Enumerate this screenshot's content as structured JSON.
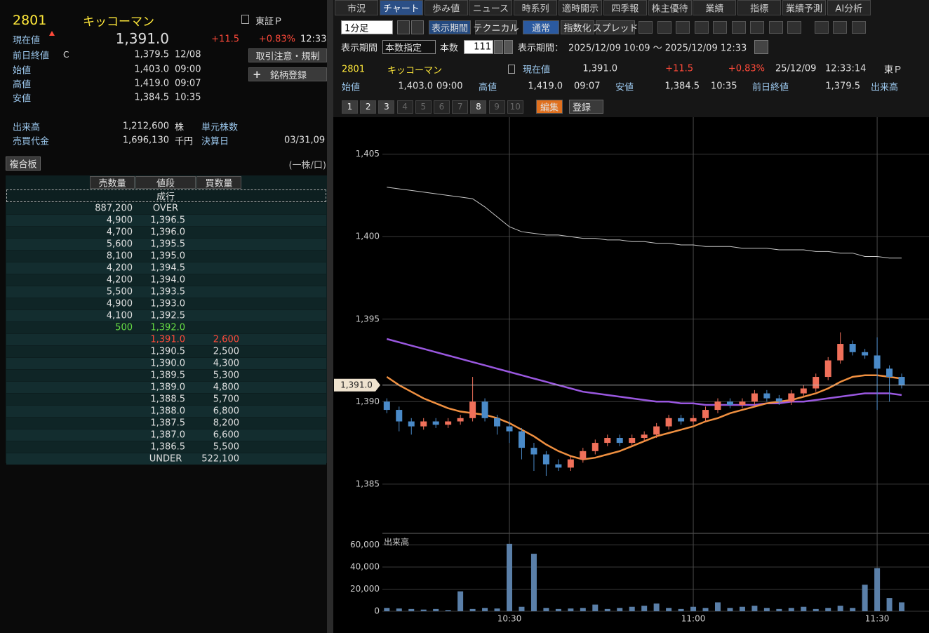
{
  "left": {
    "code": "2801",
    "name": "キッコーマン",
    "market": "東証Ｐ",
    "current_label": "現在値",
    "current": "1,391.0",
    "change": "+11.5",
    "change_pct": "+0.83%",
    "time": "12:33",
    "prev_label": "前日終値",
    "prev_flag": "C",
    "prev": "1,379.5",
    "prev_date": "12/08",
    "open_label": "始値",
    "open": "1,403.0",
    "open_time": "09:00",
    "high_label": "高値",
    "high": "1,419.0",
    "high_time": "09:07",
    "low_label": "安値",
    "low": "1,384.5",
    "low_time": "10:35",
    "btn_caution": "取引注意・規制",
    "btn_register": "銘柄登録",
    "volume_label": "出来高",
    "volume": "1,212,600",
    "volume_unit": "株",
    "unit_label": "単元株数",
    "turnover_label": "売買代金",
    "turnover": "1,696,130",
    "turnover_unit": "千円",
    "settle_label": "決算日",
    "settle": "03/31,09",
    "board_btn": "複合板",
    "board_unit": "(一株/口)"
  },
  "board": {
    "headers": [
      "売数量",
      "値段",
      "買数量"
    ],
    "market_order": "成行",
    "rows": [
      [
        "887,200",
        "OVER",
        null
      ],
      [
        "4,900",
        "1,396.5",
        null
      ],
      [
        "4,700",
        "1,396.0",
        null
      ],
      [
        "5,600",
        "1,395.5",
        null
      ],
      [
        "8,100",
        "1,395.0",
        null
      ],
      [
        "4,200",
        "1,394.5",
        null
      ],
      [
        "4,200",
        "1,394.0",
        null
      ],
      [
        "5,500",
        "1,393.5",
        null
      ],
      [
        "4,900",
        "1,393.0",
        null
      ],
      [
        "4,100",
        "1,392.5",
        null
      ],
      [
        "500",
        "1,392.0",
        null
      ],
      [
        null,
        "1,391.0",
        "2,600"
      ],
      [
        null,
        "1,390.5",
        "2,500"
      ],
      [
        null,
        "1,390.0",
        "4,300"
      ],
      [
        null,
        "1,389.5",
        "5,300"
      ],
      [
        null,
        "1,389.0",
        "4,800"
      ],
      [
        null,
        "1,388.5",
        "5,700"
      ],
      [
        null,
        "1,388.0",
        "6,800"
      ],
      [
        null,
        "1,387.5",
        "8,200"
      ],
      [
        null,
        "1,387.0",
        "6,600"
      ],
      [
        null,
        "1,386.5",
        "5,500"
      ],
      [
        null,
        "UNDER",
        "522,100"
      ]
    ]
  },
  "tabs": [
    "市況",
    "チャート",
    "歩み値",
    "ニュース",
    "時系列",
    "適時開示",
    "四季報",
    "株主優待",
    "業績",
    "指標",
    "業績予測",
    "AI分析"
  ],
  "active_tab": 1,
  "toolbar": {
    "interval": "1分足",
    "period": "表示期間",
    "technical": "テクニカル",
    "normal": "通常",
    "index": "指数化",
    "spread": "スプレッド"
  },
  "period_row": {
    "label": "表示期間",
    "mode": "本数指定",
    "count_label": "本数",
    "count": "111",
    "range_label": "表示期間：",
    "range": "2025/12/09 10:09 ～ 2025/12/09 12:33"
  },
  "info": {
    "code": "2801",
    "name": "キッコーマン",
    "current_label": "現在値",
    "current": "1,391.0",
    "change": "+11.5",
    "change_pct": "+0.83%",
    "date": "25/12/09",
    "time": "12:33:14",
    "market": "東Ｐ",
    "open_label": "始値",
    "open": "1,403.0",
    "open_time": "09:00",
    "high_label": "高値",
    "high": "1,419.0",
    "high_time": "09:07",
    "low_label": "安値",
    "low": "1,384.5",
    "low_time": "10:35",
    "prev_label": "前日終値",
    "prev": "1,379.5",
    "volume_label": "出来高"
  },
  "pages": [
    "1",
    "2",
    "3",
    "4",
    "5",
    "6",
    "7",
    "8",
    "9",
    "10"
  ],
  "pages_enabled": [
    true,
    true,
    true,
    false,
    false,
    false,
    false,
    true,
    false,
    false
  ],
  "edit": "編集",
  "register": "登録",
  "chart_data": {
    "type": "candlestick",
    "categories": [
      null,
      null,
      null,
      null,
      null,
      null,
      null,
      null,
      null,
      null,
      "10:30",
      null,
      null,
      null,
      null,
      null,
      null,
      null,
      null,
      null,
      null,
      null,
      null,
      null,
      null,
      "11:00",
      null,
      null,
      null,
      null,
      null,
      null,
      null,
      null,
      null,
      null,
      null,
      null,
      null,
      null,
      "11:30",
      null,
      null
    ],
    "open": [
      1390.0,
      1389.5,
      1388.8,
      1388.5,
      1388.8,
      1388.6,
      1388.8,
      1389.0,
      1390.0,
      1389.0,
      1388.5,
      1388.2,
      1387.2,
      1386.8,
      1386.2,
      1386.0,
      1386.5,
      1387.0,
      1387.5,
      1387.8,
      1387.5,
      1387.8,
      1388.0,
      1388.5,
      1389.0,
      1388.8,
      1389.0,
      1389.5,
      1390.0,
      1389.8,
      1390.0,
      1390.5,
      1390.2,
      1390.0,
      1390.5,
      1390.8,
      1391.5,
      1392.5,
      1393.5,
      1393.0,
      1392.8,
      1392.0,
      1391.5
    ],
    "high": [
      1390.2,
      1389.7,
      1389.0,
      1389.0,
      1389.0,
      1389.0,
      1389.2,
      1391.5,
      1390.2,
      1389.2,
      1388.8,
      1388.4,
      1387.5,
      1387.0,
      1386.5,
      1386.7,
      1387.2,
      1387.7,
      1388.0,
      1388.0,
      1388.0,
      1388.2,
      1388.7,
      1389.2,
      1389.2,
      1389.2,
      1389.7,
      1390.2,
      1390.2,
      1390.2,
      1390.7,
      1390.7,
      1390.4,
      1390.7,
      1391.0,
      1391.7,
      1392.7,
      1394.2,
      1393.7,
      1393.2,
      1393.9,
      1392.2,
      1391.7
    ],
    "low": [
      1389.3,
      1388.2,
      1388.0,
      1388.3,
      1388.4,
      1388.4,
      1388.6,
      1388.8,
      1388.8,
      1388.0,
      1387.5,
      1386.5,
      1385.8,
      1385.5,
      1385.8,
      1385.8,
      1386.3,
      1386.8,
      1387.3,
      1387.3,
      1387.3,
      1387.6,
      1387.8,
      1388.3,
      1388.6,
      1388.6,
      1388.8,
      1389.3,
      1389.6,
      1389.6,
      1389.8,
      1390.0,
      1389.8,
      1389.8,
      1390.3,
      1390.6,
      1391.3,
      1392.3,
      1392.8,
      1392.6,
      1389.5,
      1390.0,
      1390.8
    ],
    "close": [
      1389.5,
      1388.8,
      1388.5,
      1388.8,
      1388.6,
      1388.8,
      1389.0,
      1390.0,
      1389.0,
      1388.5,
      1388.2,
      1387.2,
      1386.8,
      1386.2,
      1386.0,
      1386.5,
      1387.0,
      1387.5,
      1387.8,
      1387.5,
      1387.8,
      1388.0,
      1388.5,
      1389.0,
      1388.8,
      1389.0,
      1389.5,
      1390.0,
      1389.8,
      1390.0,
      1390.5,
      1390.2,
      1390.0,
      1390.5,
      1390.8,
      1391.5,
      1392.5,
      1393.5,
      1393.0,
      1392.8,
      1392.0,
      1391.5,
      1391.0
    ],
    "up_color": "#f0705a",
    "down_color": "#4a8ac8",
    "lines": [
      {
        "color": "#c8c8c8",
        "values": [
          1403.0,
          1402.9,
          1402.8,
          1402.7,
          1402.6,
          1402.5,
          1402.4,
          1402.3,
          1401.8,
          1401.2,
          1400.6,
          1400.3,
          1400.2,
          1400.1,
          1400.1,
          1400.0,
          1399.9,
          1399.9,
          1399.8,
          1399.8,
          1399.7,
          1399.7,
          1399.6,
          1399.6,
          1399.5,
          1399.5,
          1399.4,
          1399.4,
          1399.4,
          1399.3,
          1399.3,
          1399.3,
          1399.2,
          1399.2,
          1399.2,
          1399.1,
          1399.1,
          1399.0,
          1399.0,
          1398.8,
          1398.8,
          1398.7,
          1398.7
        ]
      },
      {
        "color": "#9a58e0",
        "values": [
          1393.8,
          1393.6,
          1393.4,
          1393.2,
          1393.0,
          1392.8,
          1392.6,
          1392.4,
          1392.2,
          1392.0,
          1391.8,
          1391.6,
          1391.4,
          1391.2,
          1391.0,
          1390.8,
          1390.6,
          1390.5,
          1390.4,
          1390.3,
          1390.2,
          1390.1,
          1390.0,
          1390.0,
          1389.9,
          1389.9,
          1389.8,
          1389.8,
          1389.8,
          1389.8,
          1389.8,
          1389.9,
          1389.9,
          1390.0,
          1390.0,
          1390.1,
          1390.2,
          1390.3,
          1390.4,
          1390.5,
          1390.5,
          1390.5,
          1390.4
        ]
      },
      {
        "color": "#f09040",
        "values": [
          1391.5,
          1391.0,
          1390.6,
          1390.2,
          1389.9,
          1389.6,
          1389.4,
          1389.3,
          1389.2,
          1389.0,
          1388.7,
          1388.3,
          1387.9,
          1387.4,
          1387.0,
          1386.7,
          1386.5,
          1386.6,
          1386.8,
          1387.0,
          1387.3,
          1387.6,
          1387.9,
          1388.1,
          1388.3,
          1388.5,
          1388.8,
          1389.0,
          1389.3,
          1389.5,
          1389.7,
          1389.9,
          1390.0,
          1390.1,
          1390.3,
          1390.5,
          1390.8,
          1391.2,
          1391.5,
          1391.6,
          1391.6,
          1391.5,
          1391.4
        ]
      }
    ],
    "ylim": [
      1382.1,
      1407.2
    ],
    "yticks": [
      {
        "value": 1385,
        "label": "1,385"
      },
      {
        "value": 1390,
        "label": "1,390"
      },
      {
        "value": 1395,
        "label": "1,395"
      },
      {
        "value": 1400,
        "label": "1,400"
      },
      {
        "value": 1405,
        "label": "1,405"
      }
    ],
    "grid": true,
    "volume": {
      "label": "出来高",
      "color": "#5a7fa8",
      "values": [
        3000,
        2500,
        2000,
        1500,
        2000,
        1000,
        18000,
        2000,
        3000,
        2500,
        61000,
        4000,
        52000,
        3000,
        2000,
        2500,
        3000,
        6000,
        2000,
        3000,
        4000,
        5000,
        7000,
        3000,
        2000,
        4000,
        3000,
        8000,
        3000,
        4000,
        5000,
        3000,
        2000,
        3000,
        4000,
        2000,
        3000,
        5000,
        3000,
        24000,
        39000,
        12000,
        8000
      ],
      "ylim": [
        0,
        66000
      ],
      "yticks": [
        0,
        {
          "value": 20000,
          "label": "20,000"
        },
        {
          "value": 40000,
          "label": "40,000"
        },
        {
          "value": 60000,
          "label": "60,000"
        }
      ]
    }
  }
}
